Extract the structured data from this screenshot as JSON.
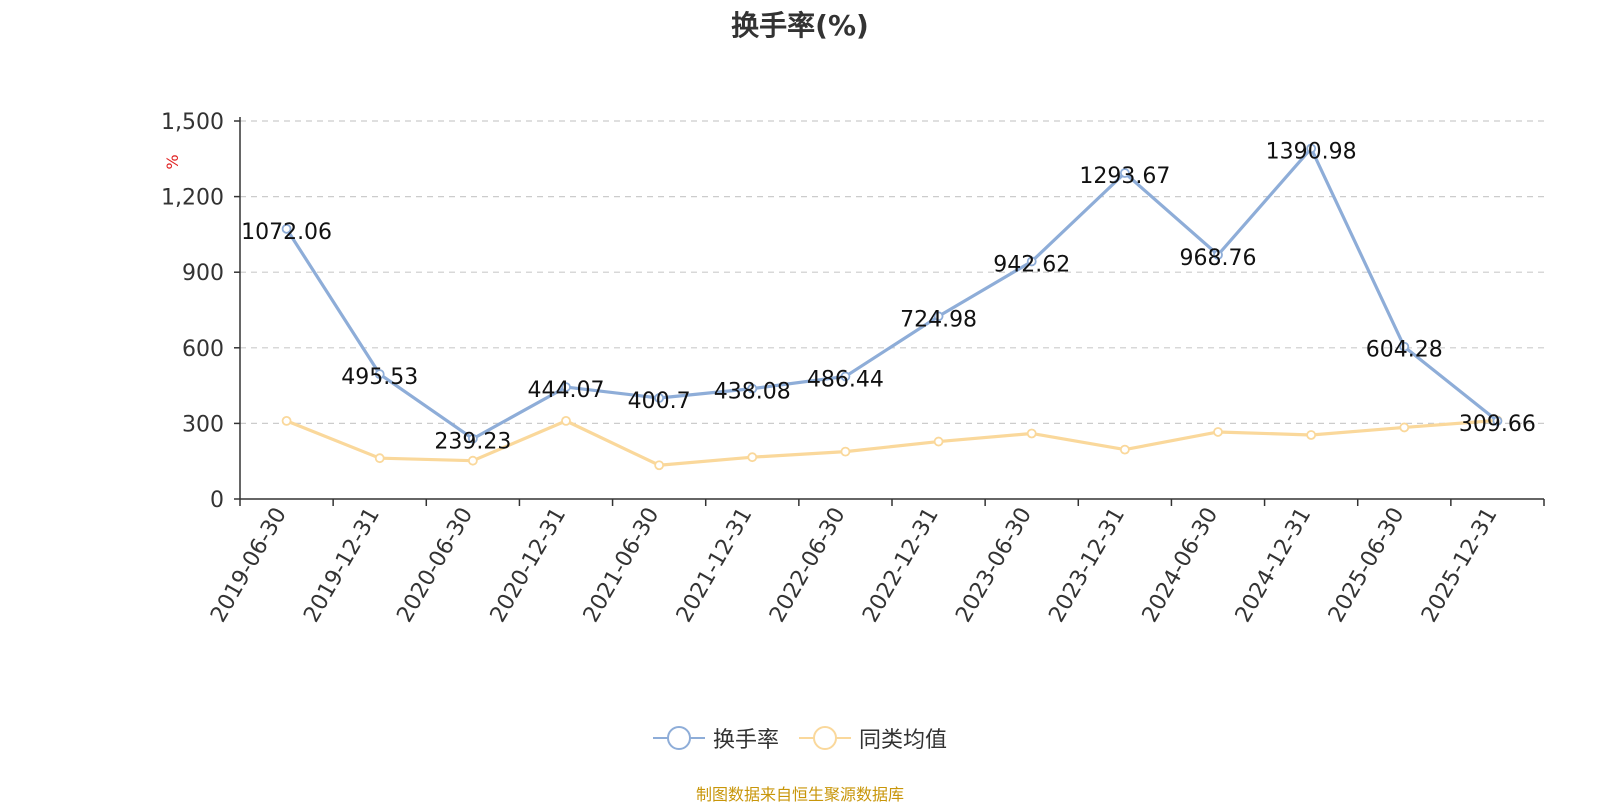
{
  "chart_data": {
    "type": "line",
    "title": "换手率(%)",
    "ylabel": "%",
    "categories": [
      "2019-06-30",
      "2019-12-31",
      "2020-06-30",
      "2020-12-31",
      "2021-06-30",
      "2021-12-31",
      "2022-06-30",
      "2022-12-31",
      "2023-06-30",
      "2023-12-31",
      "2024-06-30",
      "2024-12-31",
      "2025-06-30",
      "2025-12-31"
    ],
    "ylim": [
      0,
      1500
    ],
    "yticks": [
      0,
      300,
      600,
      900,
      1200,
      1500
    ],
    "ytick_labels": [
      "0",
      "300",
      "600",
      "900",
      "1,200",
      "1,500"
    ],
    "grid": true,
    "legend_position": "bottom",
    "series": [
      {
        "name": "换手率",
        "color": "#8eadd8",
        "show_labels": true,
        "values": [
          1072.06,
          495.53,
          239.23,
          444.07,
          400.7,
          438.08,
          486.44,
          724.98,
          942.62,
          1293.67,
          968.76,
          1390.98,
          604.28,
          309.66
        ],
        "labels": [
          "1072.06",
          "495.53",
          "239.23",
          "444.07",
          "400.7",
          "438.08",
          "486.44",
          "724.98",
          "942.62",
          "1293.67",
          "968.76",
          "1390.98",
          "604.28",
          "309.66"
        ]
      },
      {
        "name": "同类均值",
        "color": "#fad89b",
        "show_labels": false,
        "values": [
          310,
          162,
          152,
          310,
          134,
          166,
          188,
          228,
          260,
          196,
          266,
          254,
          284,
          312
        ]
      }
    ]
  },
  "footer": {
    "source": "制图数据来自恒生聚源数据库"
  }
}
